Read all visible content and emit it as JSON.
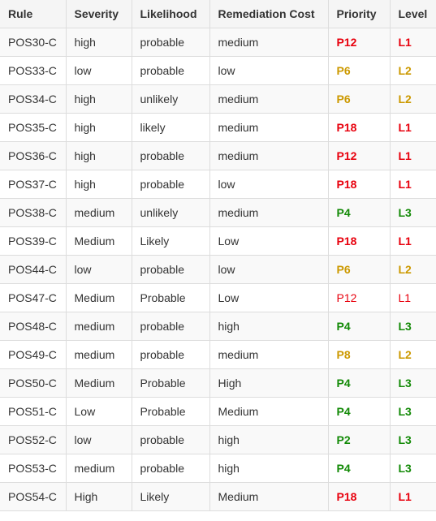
{
  "colors": {
    "red": "#e8000d",
    "orange": "#cc9900",
    "green": "#138a07",
    "header_bg": "#f5f5f5",
    "stripe_bg": "#f9f9f9",
    "border": "#dddddd"
  },
  "headers": [
    "Rule",
    "Severity",
    "Likelihood",
    "Remediation Cost",
    "Priority",
    "Level"
  ],
  "rows": [
    {
      "rule": "POS30-C",
      "severity": "high",
      "likelihood": "probable",
      "cost": "medium",
      "priority": "P12",
      "level": "L1",
      "color": "red",
      "bold": true
    },
    {
      "rule": "POS33-C",
      "severity": "low",
      "likelihood": "probable",
      "cost": "low",
      "priority": "P6",
      "level": "L2",
      "color": "orange",
      "bold": true
    },
    {
      "rule": "POS34-C",
      "severity": "high",
      "likelihood": "unlikely",
      "cost": "medium",
      "priority": "P6",
      "level": "L2",
      "color": "orange",
      "bold": true
    },
    {
      "rule": "POS35-C",
      "severity": "high",
      "likelihood": "likely",
      "cost": "medium",
      "priority": "P18",
      "level": "L1",
      "color": "red",
      "bold": true
    },
    {
      "rule": "POS36-C",
      "severity": "high",
      "likelihood": "probable",
      "cost": "medium",
      "priority": "P12",
      "level": "L1",
      "color": "red",
      "bold": true
    },
    {
      "rule": "POS37-C",
      "severity": "high",
      "likelihood": "probable",
      "cost": "low",
      "priority": "P18",
      "level": "L1",
      "color": "red",
      "bold": true
    },
    {
      "rule": "POS38-C",
      "severity": "medium",
      "likelihood": "unlikely",
      "cost": "medium",
      "priority": "P4",
      "level": "L3",
      "color": "green",
      "bold": true
    },
    {
      "rule": "POS39-C",
      "severity": "Medium",
      "likelihood": "Likely",
      "cost": "Low",
      "priority": "P18",
      "level": "L1",
      "color": "red",
      "bold": true
    },
    {
      "rule": "POS44-C",
      "severity": "low",
      "likelihood": "probable",
      "cost": "low",
      "priority": "P6",
      "level": "L2",
      "color": "orange",
      "bold": true
    },
    {
      "rule": "POS47-C",
      "severity": "Medium",
      "likelihood": "Probable",
      "cost": "Low",
      "priority": "P12",
      "level": "L1",
      "color": "red",
      "bold": false
    },
    {
      "rule": "POS48-C",
      "severity": "medium",
      "likelihood": "probable",
      "cost": "high",
      "priority": "P4",
      "level": "L3",
      "color": "green",
      "bold": true
    },
    {
      "rule": "POS49-C",
      "severity": "medium",
      "likelihood": "probable",
      "cost": "medium",
      "priority": "P8",
      "level": "L2",
      "color": "orange",
      "bold": true
    },
    {
      "rule": "POS50-C",
      "severity": "Medium",
      "likelihood": "Probable",
      "cost": "High",
      "priority": "P4",
      "level": "L3",
      "color": "green",
      "bold": true
    },
    {
      "rule": "POS51-C",
      "severity": "Low",
      "likelihood": "Probable",
      "cost": "Medium",
      "priority": "P4",
      "level": "L3",
      "color": "green",
      "bold": true
    },
    {
      "rule": "POS52-C",
      "severity": "low",
      "likelihood": "probable",
      "cost": "high",
      "priority": "P2",
      "level": "L3",
      "color": "green",
      "bold": true
    },
    {
      "rule": "POS53-C",
      "severity": "medium",
      "likelihood": "probable",
      "cost": "high",
      "priority": "P4",
      "level": "L3",
      "color": "green",
      "bold": true
    },
    {
      "rule": "POS54-C",
      "severity": "High",
      "likelihood": "Likely",
      "cost": "Medium",
      "priority": "P18",
      "level": "L1",
      "color": "red",
      "bold": true
    }
  ]
}
